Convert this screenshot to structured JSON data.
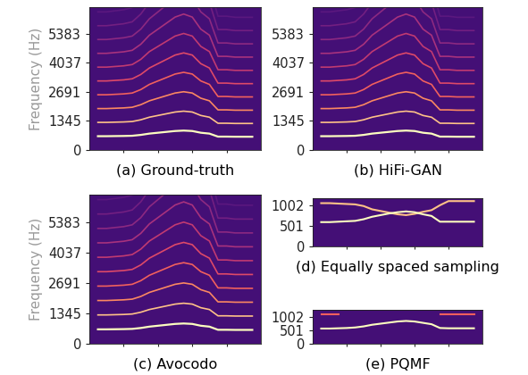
{
  "chart_data": [
    {
      "type": "spectrogram",
      "xlabel": "(a) Ground-truth",
      "ylabel": "Frequency (Hz)",
      "x": [
        0,
        5,
        10,
        15,
        20,
        25,
        30,
        35,
        40,
        45,
        50,
        55,
        60,
        65,
        70,
        75,
        80,
        85,
        90,
        95,
        100
      ],
      "f0": [
        null,
        640,
        640,
        645,
        650,
        660,
        700,
        760,
        800,
        840,
        880,
        900,
        880,
        800,
        760,
        620,
        620,
        615,
        615,
        615,
        null
      ],
      "harmonics": 10,
      "colors": [
        "#fcfdbf",
        "#fec287",
        "#fb8861",
        "#f1605d",
        "#de4968",
        "#c13a71",
        "#a8327d",
        "#8c2981",
        "#721f81",
        "#5b187f"
      ],
      "xlim": [
        0,
        100
      ],
      "xticks": [
        20,
        40,
        60,
        80
      ],
      "ylim": [
        0,
        6620
      ],
      "yticks": [
        0,
        1345,
        2691,
        4037,
        5383
      ],
      "tick_labels": "y"
    },
    {
      "type": "spectrogram",
      "xlabel": "(b) HiFi-GAN",
      "x": [
        0,
        5,
        10,
        15,
        20,
        25,
        30,
        35,
        40,
        45,
        50,
        55,
        60,
        65,
        70,
        75,
        80,
        85,
        90,
        95,
        100
      ],
      "f0": [
        null,
        640,
        640,
        645,
        650,
        660,
        700,
        760,
        800,
        840,
        880,
        900,
        880,
        800,
        760,
        620,
        620,
        615,
        615,
        615,
        null
      ],
      "harmonics": 10,
      "colors": [
        "#fcfdbf",
        "#fec287",
        "#fb8861",
        "#f1605d",
        "#de4968",
        "#c13a71",
        "#a8327d",
        "#8c2981",
        "#721f81",
        "#5b187f"
      ],
      "xlim": [
        0,
        100
      ],
      "xticks": [
        20,
        40,
        60,
        80
      ],
      "ylim": [
        0,
        6620
      ],
      "yticks": [
        0,
        1345,
        2691,
        4037,
        5383
      ],
      "tick_labels": "y"
    },
    {
      "type": "spectrogram",
      "xlabel": "(c) Avocodo",
      "ylabel": "Frequency (Hz)",
      "x": [
        0,
        5,
        10,
        15,
        20,
        25,
        30,
        35,
        40,
        45,
        50,
        55,
        60,
        65,
        70,
        75,
        80,
        85,
        90,
        95,
        100
      ],
      "f0": [
        null,
        640,
        640,
        645,
        650,
        660,
        700,
        760,
        800,
        840,
        880,
        900,
        880,
        800,
        760,
        620,
        620,
        615,
        615,
        615,
        null
      ],
      "harmonics": 10,
      "colors": [
        "#fcfdbf",
        "#fec287",
        "#fb8861",
        "#f1605d",
        "#de4968",
        "#c13a71",
        "#a8327d",
        "#8c2981",
        "#721f81",
        "#5b187f"
      ],
      "xlim": [
        0,
        100
      ],
      "xticks": [
        20,
        40,
        60,
        80
      ],
      "ylim": [
        0,
        6620
      ],
      "yticks": [
        0,
        1345,
        2691,
        4037,
        5383
      ],
      "tick_labels": "y"
    },
    {
      "type": "spectrogram",
      "xlabel": "(d) Equally spaced sampling",
      "x": [
        0,
        5,
        10,
        15,
        20,
        25,
        30,
        35,
        40,
        45,
        50,
        55,
        60,
        65,
        70,
        75,
        80,
        85,
        90,
        95,
        100
      ],
      "series": [
        {
          "color": "#fec287",
          "values": [
            null,
            1050,
            1050,
            1040,
            1030,
            1020,
            980,
            900,
            860,
            820,
            780,
            760,
            790,
            840,
            880,
            1000,
            1100,
            1100,
            1100,
            1100,
            null
          ]
        },
        {
          "color": "#fcfdbf",
          "values": [
            null,
            590,
            590,
            600,
            610,
            620,
            660,
            720,
            760,
            800,
            830,
            850,
            830,
            780,
            740,
            600,
            600,
            600,
            600,
            600,
            null
          ]
        }
      ],
      "xlim": [
        0,
        100
      ],
      "xticks": [
        20,
        40,
        60,
        80
      ],
      "ylim": [
        0,
        1170
      ],
      "yticks": [
        0,
        501,
        1002
      ],
      "tick_labels": "y"
    },
    {
      "type": "spectrogram",
      "xlabel": "(e) PQMF",
      "x": [
        0,
        5,
        10,
        15,
        20,
        25,
        30,
        35,
        40,
        45,
        50,
        55,
        60,
        65,
        70,
        75,
        80,
        85,
        90,
        95,
        100
      ],
      "series": [
        {
          "color": "#fcfdbf",
          "values": [
            null,
            560,
            560,
            570,
            580,
            600,
            640,
            700,
            740,
            780,
            820,
            840,
            820,
            770,
            720,
            580,
            570,
            570,
            570,
            570,
            null
          ]
        },
        {
          "color": "#f1605d",
          "values": [
            null,
            1100,
            1100,
            1100,
            null,
            null,
            null,
            null,
            null,
            null,
            null,
            null,
            null,
            null,
            null,
            1100,
            1100,
            1100,
            1100,
            1100,
            null
          ]
        }
      ],
      "xlim": [
        0,
        100
      ],
      "xticks": [
        20,
        40,
        60,
        80
      ],
      "ylim": [
        0,
        1250
      ],
      "yticks": [
        0,
        501,
        1002
      ],
      "tick_labels": "y"
    }
  ]
}
